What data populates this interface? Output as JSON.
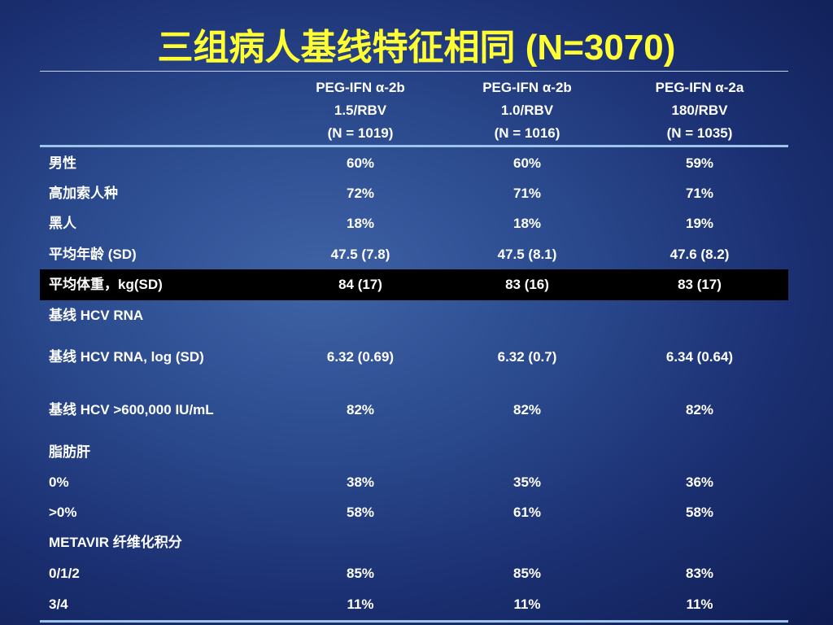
{
  "slide": {
    "title": "三组病人基线特征相同 (N=3070)"
  },
  "table": {
    "headers": [
      {
        "line1": "PEG-IFN α-2b",
        "line2": "1.5/RBV",
        "line3": "(N = 1019)"
      },
      {
        "line1": "PEG-IFN α-2b",
        "line2": "1.0/RBV",
        "line3": "(N = 1016)"
      },
      {
        "line1": "PEG-IFN α-2a",
        "line2": "180/RBV",
        "line3": "(N = 1035)"
      }
    ],
    "rows": [
      {
        "label": "男性",
        "values": [
          "60%",
          "60%",
          "59%"
        ]
      },
      {
        "label": "高加索人种",
        "values": [
          "72%",
          "71%",
          "71%"
        ]
      },
      {
        "label": "黑人",
        "values": [
          "18%",
          "18%",
          "19%"
        ]
      },
      {
        "label": "平均年龄 (SD)",
        "values": [
          "47.5 (7.8)",
          "47.5 (8.1)",
          "47.6 (8.2)"
        ]
      },
      {
        "label": "平均体重，kg(SD)",
        "values": [
          "84 (17)",
          "83 (16)",
          "83 (17)"
        ],
        "highlighted": true
      },
      {
        "label": "基线 HCV RNA",
        "values": [
          "",
          "",
          ""
        ]
      },
      {
        "label": "基线 HCV RNA, log (SD)",
        "values": [
          "6.32 (0.69)",
          "6.32 (0.7)",
          "6.34 (0.64)"
        ]
      },
      {
        "label": "基线 HCV >600,000 IU/mL",
        "values": [
          "82%",
          "82%",
          "82%"
        ]
      },
      {
        "label": "脂肪肝",
        "values": [
          "",
          "",
          ""
        ]
      },
      {
        "label": "0%",
        "values": [
          "38%",
          "35%",
          "36%"
        ]
      },
      {
        "label": ">0%",
        "values": [
          "58%",
          "61%",
          "58%"
        ]
      },
      {
        "label": "METAVIR 纤维化积分",
        "values": [
          "",
          "",
          ""
        ]
      },
      {
        "label": "0/1/2",
        "values": [
          "85%",
          "85%",
          "83%"
        ]
      },
      {
        "label": "3/4",
        "values": [
          "11%",
          "11%",
          "11%"
        ]
      }
    ]
  },
  "colors": {
    "title": "#ffff33",
    "text": "#ffffff",
    "rule": "#9fc4ea",
    "highlight_row": "#000000"
  }
}
